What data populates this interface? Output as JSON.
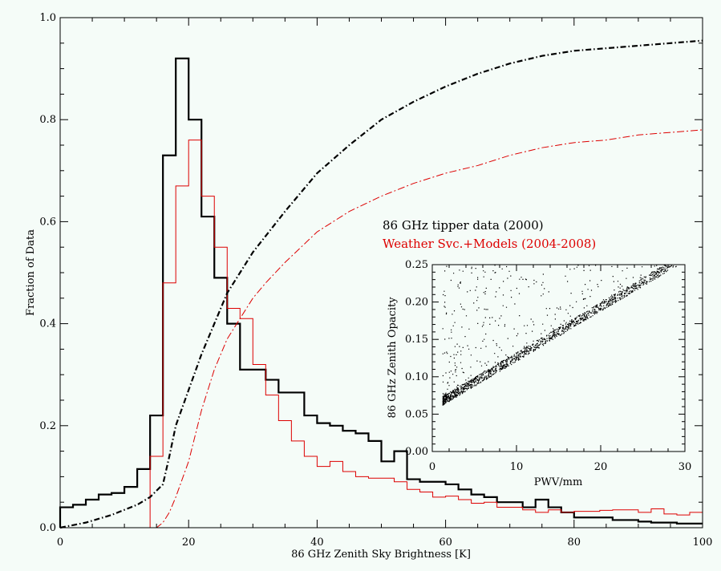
{
  "colors": {
    "background": "#f5fcf8",
    "tipper": "#000000",
    "models": "#dd0000"
  },
  "chart_data": [
    {
      "type": "line",
      "panel": "main",
      "xlabel": "86 GHz Zenith Sky Brightness [K]",
      "ylabel": "Fraction of Data",
      "xlim": [
        0,
        100
      ],
      "ylim": [
        0,
        1.0
      ],
      "x_ticks": [
        "0",
        "20",
        "40",
        "60",
        "80",
        "100"
      ],
      "y_ticks": [
        "0.0",
        "0.2",
        "0.4",
        "0.6",
        "0.8",
        "1.0"
      ],
      "grid": false,
      "legend_position": "center-right",
      "series": [
        {
          "name": "86 GHz tipper data (2000)",
          "style": "histogram-step",
          "color": "#000000",
          "bin_edges": [
            0,
            2,
            4,
            6,
            8,
            10,
            12,
            14,
            16,
            18,
            20,
            22,
            24,
            26,
            28,
            30,
            32,
            34,
            36,
            38,
            40,
            42,
            44,
            46,
            48,
            50,
            52,
            54,
            56,
            58,
            60,
            62,
            64,
            66,
            68,
            70,
            72,
            74,
            76,
            78,
            80,
            82,
            84,
            86,
            88,
            90,
            92,
            94,
            96,
            98,
            100
          ],
          "values": [
            0.04,
            0.045,
            0.055,
            0.065,
            0.068,
            0.08,
            0.115,
            0.22,
            0.73,
            0.92,
            0.8,
            0.61,
            0.49,
            0.4,
            0.31,
            0.31,
            0.29,
            0.265,
            0.265,
            0.22,
            0.205,
            0.2,
            0.19,
            0.185,
            0.17,
            0.13,
            0.15,
            0.095,
            0.09,
            0.09,
            0.085,
            0.075,
            0.065,
            0.06,
            0.05,
            0.05,
            0.04,
            0.055,
            0.04,
            0.03,
            0.02,
            0.02,
            0.02,
            0.015,
            0.015,
            0.012,
            0.01,
            0.01,
            0.008,
            0.008
          ]
        },
        {
          "name": "Weather Svc.+Models (2004-2008)",
          "style": "histogram-step",
          "color": "#dd0000",
          "bin_edges": [
            0,
            2,
            4,
            6,
            8,
            10,
            12,
            14,
            16,
            18,
            20,
            22,
            24,
            26,
            28,
            30,
            32,
            34,
            36,
            38,
            40,
            42,
            44,
            46,
            48,
            50,
            52,
            54,
            56,
            58,
            60,
            62,
            64,
            66,
            68,
            70,
            72,
            74,
            76,
            78,
            80,
            82,
            84,
            86,
            88,
            90,
            92,
            94,
            96,
            98,
            100
          ],
          "values": [
            0,
            0,
            0,
            0,
            0,
            0,
            0,
            0.14,
            0.48,
            0.67,
            0.76,
            0.65,
            0.55,
            0.43,
            0.41,
            0.32,
            0.26,
            0.21,
            0.17,
            0.14,
            0.12,
            0.13,
            0.11,
            0.1,
            0.097,
            0.097,
            0.09,
            0.075,
            0.07,
            0.06,
            0.062,
            0.055,
            0.048,
            0.05,
            0.04,
            0.04,
            0.035,
            0.03,
            0.035,
            0.03,
            0.032,
            0.032,
            0.034,
            0.035,
            0.035,
            0.03,
            0.037,
            0.027,
            0.025,
            0.03
          ]
        },
        {
          "name": "tipper cumulative",
          "style": "dash-dot",
          "color": "#000000",
          "x": [
            0,
            4,
            8,
            12,
            14,
            16,
            17,
            18,
            20,
            22,
            24,
            26,
            28,
            30,
            35,
            40,
            45,
            50,
            55,
            60,
            65,
            70,
            75,
            80,
            85,
            90,
            95,
            100
          ],
          "y": [
            0.0,
            0.01,
            0.025,
            0.045,
            0.06,
            0.085,
            0.14,
            0.2,
            0.27,
            0.34,
            0.4,
            0.46,
            0.5,
            0.54,
            0.62,
            0.695,
            0.75,
            0.8,
            0.835,
            0.865,
            0.89,
            0.91,
            0.925,
            0.935,
            0.94,
            0.945,
            0.95,
            0.955
          ]
        },
        {
          "name": "models cumulative",
          "style": "dash-dot",
          "color": "#dd0000",
          "x": [
            0,
            14,
            15,
            16,
            17,
            18,
            20,
            22,
            24,
            26,
            28,
            30,
            32,
            35,
            40,
            45,
            50,
            55,
            60,
            65,
            70,
            75,
            80,
            85,
            90,
            95,
            100
          ],
          "y": [
            0.0,
            0.0,
            0.0,
            0.01,
            0.03,
            0.06,
            0.13,
            0.23,
            0.31,
            0.37,
            0.41,
            0.45,
            0.48,
            0.52,
            0.58,
            0.62,
            0.65,
            0.675,
            0.695,
            0.71,
            0.73,
            0.745,
            0.755,
            0.76,
            0.77,
            0.775,
            0.78
          ]
        }
      ],
      "legend": {
        "tipper_label": "86 GHz tipper data (2000)",
        "models_label": "Weather Svc.+Models (2004-2008)"
      }
    },
    {
      "type": "scatter",
      "panel": "inset",
      "xlabel": "PWV/mm",
      "ylabel": "86 GHz Zenith Opacity",
      "xlim": [
        0,
        30
      ],
      "ylim": [
        0,
        0.25
      ],
      "x_ticks": [
        "0",
        "10",
        "20",
        "30"
      ],
      "y_ticks": [
        "0.00",
        "0.05",
        "0.10",
        "0.15",
        "0.20",
        "0.25"
      ],
      "grid": false,
      "relation": {
        "x_range": [
          1.2,
          29
        ],
        "baseline_intercept": 0.058,
        "baseline_slope": 0.0067,
        "note_points": 1800
      }
    }
  ]
}
